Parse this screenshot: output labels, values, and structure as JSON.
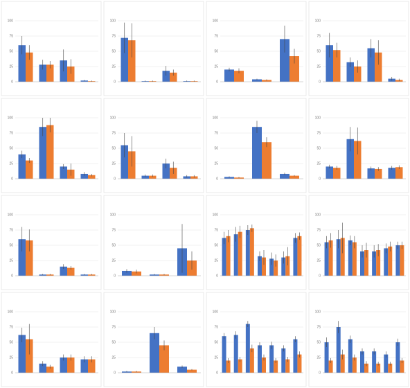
{
  "chart_data": [
    {
      "type": "bar",
      "ylim": [
        0,
        100
      ],
      "yticks": [
        0,
        25,
        50,
        75,
        100
      ],
      "grid": true,
      "series": [
        {
          "color": "#4472c4",
          "values": [
            60,
            28,
            35,
            2
          ],
          "errors": [
            15,
            8,
            18,
            1
          ]
        },
        {
          "color": "#ed7d31",
          "values": [
            48,
            28,
            25,
            1
          ],
          "errors": [
            12,
            6,
            12,
            1
          ]
        }
      ]
    },
    {
      "type": "bar",
      "ylim": [
        0,
        100
      ],
      "yticks": [
        0,
        25,
        50,
        75,
        100
      ],
      "grid": true,
      "series": [
        {
          "color": "#4472c4",
          "values": [
            72,
            1,
            18,
            1
          ],
          "errors": [
            25,
            1,
            8,
            1
          ]
        },
        {
          "color": "#ed7d31",
          "values": [
            68,
            1,
            15,
            1
          ],
          "errors": [
            28,
            1,
            5,
            1
          ]
        }
      ]
    },
    {
      "type": "bar",
      "ylim": [
        0,
        100
      ],
      "yticks": [
        0,
        25,
        50,
        75,
        100
      ],
      "grid": true,
      "series": [
        {
          "color": "#4472c4",
          "values": [
            20,
            4,
            70
          ],
          "errors": [
            3,
            1,
            22
          ]
        },
        {
          "color": "#ed7d31",
          "values": [
            18,
            3,
            42
          ],
          "errors": [
            4,
            1,
            12
          ]
        }
      ]
    },
    {
      "type": "bar",
      "ylim": [
        0,
        100
      ],
      "yticks": [
        0,
        25,
        50,
        75,
        100
      ],
      "grid": true,
      "series": [
        {
          "color": "#4472c4",
          "values": [
            60,
            32,
            55,
            5
          ],
          "errors": [
            20,
            8,
            15,
            3
          ]
        },
        {
          "color": "#ed7d31",
          "values": [
            52,
            25,
            48,
            3
          ],
          "errors": [
            12,
            10,
            20,
            2
          ]
        }
      ]
    },
    {
      "type": "bar",
      "ylim": [
        0,
        100
      ],
      "yticks": [
        0,
        25,
        50,
        75,
        100
      ],
      "grid": true,
      "series": [
        {
          "color": "#4472c4",
          "values": [
            40,
            85,
            20,
            8
          ],
          "errors": [
            6,
            15,
            4,
            3
          ]
        },
        {
          "color": "#ed7d31",
          "values": [
            30,
            88,
            15,
            6
          ],
          "errors": [
            4,
            12,
            10,
            2
          ]
        }
      ]
    },
    {
      "type": "bar",
      "ylim": [
        0,
        100
      ],
      "yticks": [
        0,
        25,
        50,
        75,
        100
      ],
      "grid": true,
      "series": [
        {
          "color": "#4472c4",
          "values": [
            55,
            5,
            25,
            4
          ],
          "errors": [
            20,
            2,
            8,
            2
          ]
        },
        {
          "color": "#ed7d31",
          "values": [
            45,
            5,
            18,
            4
          ],
          "errors": [
            25,
            2,
            10,
            2
          ]
        }
      ]
    },
    {
      "type": "bar",
      "ylim": [
        0,
        100
      ],
      "yticks": [
        0,
        25,
        50,
        75,
        100
      ],
      "grid": true,
      "series": [
        {
          "color": "#4472c4",
          "values": [
            3,
            85,
            8
          ],
          "errors": [
            1,
            10,
            2
          ]
        },
        {
          "color": "#ed7d31",
          "values": [
            2,
            60,
            5
          ],
          "errors": [
            1,
            8,
            1
          ]
        }
      ]
    },
    {
      "type": "bar",
      "ylim": [
        0,
        100
      ],
      "yticks": [
        0,
        25,
        50,
        75,
        100
      ],
      "grid": true,
      "series": [
        {
          "color": "#4472c4",
          "values": [
            20,
            65,
            17,
            18
          ],
          "errors": [
            3,
            20,
            3,
            3
          ]
        },
        {
          "color": "#ed7d31",
          "values": [
            18,
            62,
            16,
            19
          ],
          "errors": [
            3,
            22,
            3,
            3
          ]
        }
      ]
    },
    {
      "type": "bar",
      "ylim": [
        0,
        100
      ],
      "yticks": [
        0,
        25,
        50,
        75,
        100
      ],
      "grid": true,
      "series": [
        {
          "color": "#4472c4",
          "values": [
            60,
            2,
            15,
            2
          ],
          "errors": [
            20,
            1,
            4,
            1
          ]
        },
        {
          "color": "#ed7d31",
          "values": [
            58,
            2,
            13,
            2
          ],
          "errors": [
            18,
            1,
            3,
            1
          ]
        }
      ]
    },
    {
      "type": "bar",
      "ylim": [
        0,
        100
      ],
      "yticks": [
        0,
        25,
        50,
        75,
        100
      ],
      "grid": true,
      "series": [
        {
          "color": "#4472c4",
          "values": [
            8,
            2,
            45
          ],
          "errors": [
            3,
            1,
            40
          ]
        },
        {
          "color": "#ed7d31",
          "values": [
            7,
            2,
            25
          ],
          "errors": [
            3,
            1,
            15
          ]
        }
      ]
    },
    {
      "type": "bar",
      "ylim": [
        0,
        100
      ],
      "yticks": [
        0,
        25,
        50,
        75,
        100
      ],
      "grid": true,
      "series": [
        {
          "color": "#4472c4",
          "values": [
            62,
            68,
            75,
            32,
            28,
            30,
            62
          ],
          "errors": [
            10,
            12,
            8,
            8,
            10,
            10,
            8
          ]
        },
        {
          "color": "#ed7d31",
          "values": [
            65,
            72,
            78,
            30,
            25,
            32,
            65
          ],
          "errors": [
            10,
            10,
            6,
            12,
            10,
            15,
            6
          ]
        }
      ]
    },
    {
      "type": "bar",
      "ylim": [
        0,
        100
      ],
      "yticks": [
        0,
        25,
        50,
        75,
        100
      ],
      "grid": true,
      "series": [
        {
          "color": "#4472c4",
          "values": [
            55,
            60,
            58,
            40,
            40,
            45,
            50
          ],
          "errors": [
            10,
            15,
            8,
            10,
            10,
            8,
            6
          ]
        },
        {
          "color": "#ed7d31",
          "values": [
            58,
            62,
            55,
            42,
            42,
            48,
            50
          ],
          "errors": [
            12,
            25,
            10,
            12,
            10,
            8,
            6
          ]
        }
      ]
    },
    {
      "type": "bar",
      "ylim": [
        0,
        100
      ],
      "yticks": [
        0,
        25,
        50,
        75,
        100
      ],
      "grid": true,
      "series": [
        {
          "color": "#4472c4",
          "values": [
            62,
            15,
            25,
            22
          ],
          "errors": [
            12,
            4,
            5,
            5
          ]
        },
        {
          "color": "#ed7d31",
          "values": [
            55,
            10,
            25,
            22
          ],
          "errors": [
            25,
            3,
            5,
            5
          ]
        }
      ]
    },
    {
      "type": "bar",
      "ylim": [
        0,
        100
      ],
      "yticks": [
        0,
        25,
        50,
        75,
        100
      ],
      "grid": true,
      "series": [
        {
          "color": "#4472c4",
          "values": [
            2,
            65,
            10
          ],
          "errors": [
            1,
            10,
            2
          ]
        },
        {
          "color": "#ed7d31",
          "values": [
            2,
            45,
            5
          ],
          "errors": [
            1,
            8,
            1
          ]
        }
      ]
    },
    {
      "type": "bar",
      "ylim": [
        0,
        100
      ],
      "yticks": [
        0,
        25,
        50,
        75,
        100
      ],
      "grid": true,
      "series": [
        {
          "color": "#4472c4",
          "values": [
            60,
            62,
            80,
            45,
            45,
            40,
            55
          ],
          "errors": [
            5,
            6,
            5,
            5,
            6,
            5,
            5
          ]
        },
        {
          "color": "#ed7d31",
          "values": [
            20,
            22,
            40,
            25,
            20,
            22,
            30
          ],
          "errors": [
            4,
            4,
            6,
            5,
            4,
            4,
            5
          ]
        }
      ]
    },
    {
      "type": "bar",
      "ylim": [
        0,
        100
      ],
      "yticks": [
        0,
        25,
        50,
        75,
        100
      ],
      "grid": true,
      "series": [
        {
          "color": "#4472c4",
          "values": [
            50,
            75,
            55,
            35,
            35,
            30,
            50
          ],
          "errors": [
            8,
            10,
            6,
            5,
            5,
            5,
            6
          ]
        },
        {
          "color": "#ed7d31",
          "values": [
            20,
            30,
            25,
            15,
            15,
            15,
            20
          ],
          "errors": [
            4,
            8,
            5,
            4,
            3,
            3,
            4
          ]
        }
      ]
    }
  ]
}
